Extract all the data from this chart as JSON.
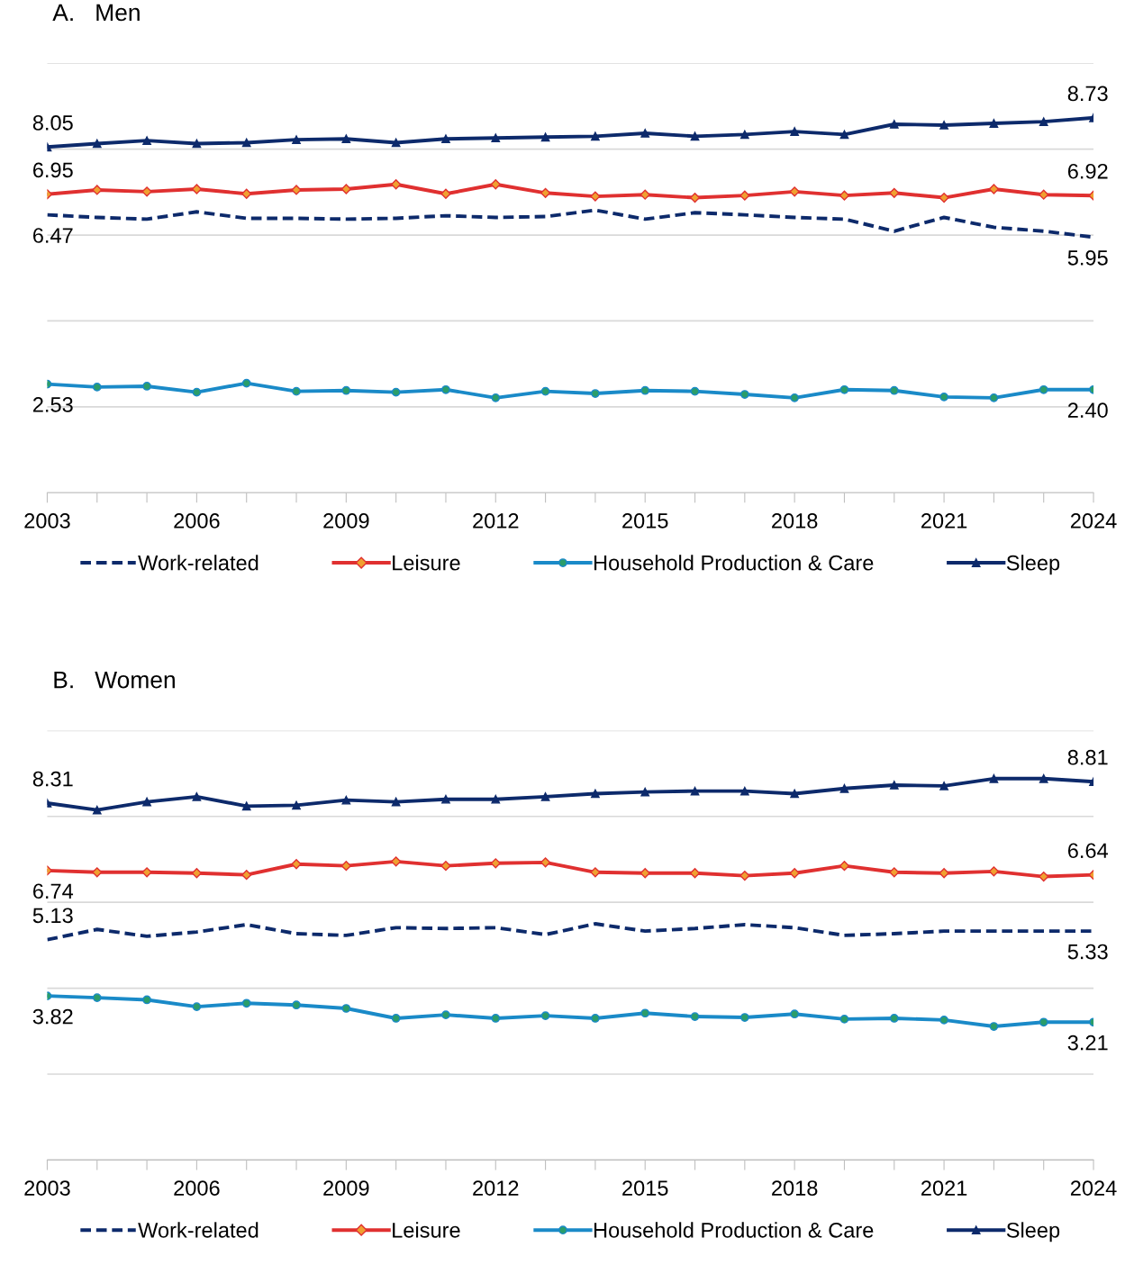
{
  "chart_data": [
    {
      "type": "line",
      "title": "A.   Men",
      "x": [
        2003,
        2004,
        2005,
        2006,
        2007,
        2008,
        2009,
        2010,
        2011,
        2012,
        2013,
        2014,
        2015,
        2016,
        2017,
        2018,
        2019,
        2020,
        2021,
        2022,
        2023,
        2024
      ],
      "xlim": [
        2003,
        2024
      ],
      "xticks": [
        2003,
        {
          "value": 2004,
          "label": null
        },
        {
          "value": 2005,
          "label": null
        },
        2006,
        {
          "value": 2007,
          "label": null
        },
        {
          "value": 2008,
          "label": null
        },
        2009,
        {
          "value": 2010,
          "label": null
        },
        {
          "value": 2011,
          "label": null
        },
        2012,
        {
          "value": 2013,
          "label": null
        },
        {
          "value": 2014,
          "label": null
        },
        2015,
        {
          "value": 2016,
          "label": null
        },
        {
          "value": 2017,
          "label": null
        },
        2018,
        {
          "value": 2019,
          "label": null
        },
        {
          "value": 2020,
          "label": null
        },
        2021,
        {
          "value": 2022,
          "label": null
        },
        {
          "value": 2023,
          "label": null
        },
        2024
      ],
      "ylim": [
        0,
        10
      ],
      "yticks": [
        {
          "value": 0,
          "label": null
        },
        {
          "value": 2,
          "label": null
        },
        {
          "value": 4,
          "label": null
        },
        {
          "value": 6,
          "label": null
        },
        {
          "value": 8,
          "label": null
        },
        {
          "value": 10,
          "label": null
        }
      ],
      "tick_labels": "x",
      "grid": "y",
      "legend": "bottom",
      "series": [
        {
          "name": "Work-related",
          "color": "#0d2a6b",
          "line_style": "dashed",
          "marker": "none",
          "values": [
            6.47,
            6.41,
            6.37,
            6.54,
            6.39,
            6.39,
            6.37,
            6.39,
            6.45,
            6.41,
            6.43,
            6.58,
            6.37,
            6.52,
            6.47,
            6.41,
            6.37,
            6.09,
            6.41,
            6.18,
            6.09,
            5.95
          ],
          "value_labels": [
            "6.47",
            null,
            null,
            null,
            null,
            null,
            null,
            null,
            null,
            null,
            null,
            null,
            null,
            null,
            null,
            null,
            null,
            null,
            null,
            null,
            null,
            "5.95"
          ]
        },
        {
          "name": "Leisure",
          "color": "#e03030",
          "line_style": "solid",
          "marker": "diamond",
          "values": [
            6.95,
            7.05,
            7.01,
            7.07,
            6.96,
            7.05,
            7.07,
            7.18,
            6.96,
            7.18,
            6.98,
            6.9,
            6.94,
            6.87,
            6.92,
            7.01,
            6.92,
            6.98,
            6.87,
            7.07,
            6.94,
            6.92
          ],
          "value_labels": [
            "6.95",
            null,
            null,
            null,
            null,
            null,
            null,
            null,
            null,
            null,
            null,
            null,
            null,
            null,
            null,
            null,
            null,
            null,
            null,
            null,
            null,
            "6.92"
          ]
        },
        {
          "name": "Household Production & Care",
          "color": "#1a8ac8",
          "line_style": "solid",
          "marker": "circle",
          "values": [
            2.53,
            2.46,
            2.48,
            2.34,
            2.55,
            2.36,
            2.38,
            2.34,
            2.4,
            2.21,
            2.36,
            2.31,
            2.38,
            2.36,
            2.29,
            2.21,
            2.4,
            2.38,
            2.23,
            2.21,
            2.4,
            2.4
          ],
          "value_labels": [
            "2.53",
            null,
            null,
            null,
            null,
            null,
            null,
            null,
            null,
            null,
            null,
            null,
            null,
            null,
            null,
            null,
            null,
            null,
            null,
            null,
            null,
            "2.40"
          ]
        },
        {
          "name": "Sleep",
          "color": "#0d2a6b",
          "line_style": "solid",
          "marker": "triangle",
          "values": [
            8.05,
            8.13,
            8.2,
            8.13,
            8.15,
            8.22,
            8.24,
            8.15,
            8.24,
            8.26,
            8.28,
            8.3,
            8.37,
            8.3,
            8.34,
            8.41,
            8.34,
            8.58,
            8.56,
            8.6,
            8.64,
            8.73
          ],
          "value_labels": [
            "8.05",
            null,
            null,
            null,
            null,
            null,
            null,
            null,
            null,
            null,
            null,
            null,
            null,
            null,
            null,
            null,
            null,
            null,
            null,
            null,
            null,
            "8.73"
          ]
        }
      ]
    },
    {
      "type": "line",
      "title": "B.   Women",
      "x": [
        2003,
        2004,
        2005,
        2006,
        2007,
        2008,
        2009,
        2010,
        2011,
        2012,
        2013,
        2014,
        2015,
        2016,
        2017,
        2018,
        2019,
        2020,
        2021,
        2022,
        2023,
        2024
      ],
      "xlim": [
        2003,
        2024
      ],
      "xticks": [
        2003,
        {
          "value": 2004,
          "label": null
        },
        {
          "value": 2005,
          "label": null
        },
        2006,
        {
          "value": 2007,
          "label": null
        },
        {
          "value": 2008,
          "label": null
        },
        2009,
        {
          "value": 2010,
          "label": null
        },
        {
          "value": 2011,
          "label": null
        },
        2012,
        {
          "value": 2013,
          "label": null
        },
        {
          "value": 2014,
          "label": null
        },
        2015,
        {
          "value": 2016,
          "label": null
        },
        {
          "value": 2017,
          "label": null
        },
        2018,
        {
          "value": 2019,
          "label": null
        },
        {
          "value": 2020,
          "label": null
        },
        2021,
        {
          "value": 2022,
          "label": null
        },
        {
          "value": 2023,
          "label": null
        },
        2024
      ],
      "ylim": [
        0,
        10
      ],
      "yticks": [
        {
          "value": 0,
          "label": null
        },
        {
          "value": 2,
          "label": null
        },
        {
          "value": 4,
          "label": null
        },
        {
          "value": 6,
          "label": null
        },
        {
          "value": 8,
          "label": null
        },
        {
          "value": 10,
          "label": null
        }
      ],
      "tick_labels": "x",
      "grid": "y",
      "legend": "bottom",
      "series": [
        {
          "name": "Work-related",
          "color": "#0d2a6b",
          "line_style": "dashed",
          "marker": "none",
          "values": [
            5.13,
            5.37,
            5.21,
            5.31,
            5.48,
            5.27,
            5.23,
            5.41,
            5.39,
            5.41,
            5.25,
            5.5,
            5.33,
            5.39,
            5.48,
            5.41,
            5.23,
            5.27,
            5.33,
            5.33,
            5.33,
            5.33
          ],
          "value_labels": [
            "5.13",
            null,
            null,
            null,
            null,
            null,
            null,
            null,
            null,
            null,
            null,
            null,
            null,
            null,
            null,
            null,
            null,
            null,
            null,
            null,
            null,
            "5.33"
          ]
        },
        {
          "name": "Leisure",
          "color": "#e03030",
          "line_style": "solid",
          "marker": "diamond",
          "values": [
            6.74,
            6.7,
            6.7,
            6.68,
            6.64,
            6.89,
            6.85,
            6.95,
            6.85,
            6.91,
            6.93,
            6.7,
            6.68,
            6.68,
            6.62,
            6.68,
            6.85,
            6.7,
            6.68,
            6.72,
            6.6,
            6.64
          ],
          "value_labels": [
            "6.74",
            null,
            null,
            null,
            null,
            null,
            null,
            null,
            null,
            null,
            null,
            null,
            null,
            null,
            null,
            null,
            null,
            null,
            null,
            null,
            null,
            "6.64"
          ]
        },
        {
          "name": "Household Production & Care",
          "color": "#1a8ac8",
          "line_style": "solid",
          "marker": "circle",
          "values": [
            3.82,
            3.78,
            3.73,
            3.57,
            3.65,
            3.61,
            3.53,
            3.3,
            3.38,
            3.3,
            3.36,
            3.3,
            3.42,
            3.34,
            3.32,
            3.4,
            3.28,
            3.3,
            3.26,
            3.11,
            3.21,
            3.21
          ],
          "value_labels": [
            "3.82",
            null,
            null,
            null,
            null,
            null,
            null,
            null,
            null,
            null,
            null,
            null,
            null,
            null,
            null,
            null,
            null,
            null,
            null,
            null,
            null,
            "3.21"
          ]
        },
        {
          "name": "Sleep",
          "color": "#0d2a6b",
          "line_style": "solid",
          "marker": "triangle",
          "values": [
            8.31,
            8.15,
            8.34,
            8.46,
            8.24,
            8.26,
            8.38,
            8.34,
            8.4,
            8.4,
            8.46,
            8.53,
            8.57,
            8.59,
            8.59,
            8.53,
            8.65,
            8.73,
            8.71,
            8.88,
            8.88,
            8.81
          ],
          "value_labels": [
            "8.31",
            null,
            null,
            null,
            null,
            null,
            null,
            null,
            null,
            null,
            null,
            null,
            null,
            null,
            null,
            null,
            null,
            null,
            null,
            null,
            null,
            "8.81"
          ]
        }
      ]
    }
  ]
}
